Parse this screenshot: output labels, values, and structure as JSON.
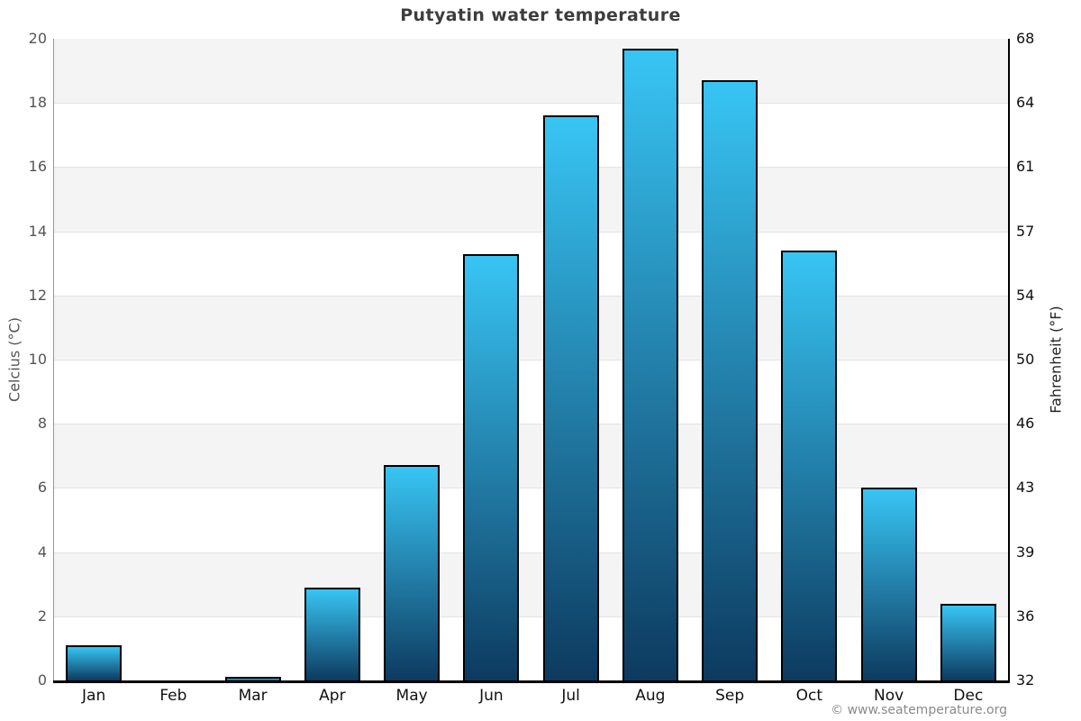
{
  "title": "Putyatin water temperature",
  "copyright": "© www.seatemperature.org",
  "chart_data": {
    "type": "bar",
    "categories": [
      "Jan",
      "Feb",
      "Mar",
      "Apr",
      "May",
      "Jun",
      "Jul",
      "Aug",
      "Sep",
      "Oct",
      "Nov",
      "Dec"
    ],
    "values": [
      1.1,
      0.0,
      0.1,
      2.9,
      6.7,
      13.3,
      17.6,
      19.7,
      18.7,
      13.4,
      6.0,
      2.4
    ],
    "title": "Putyatin water temperature",
    "ylabel_left": "Celcius (°C)",
    "ylabel_right": "Fahrenheit (°F)",
    "yticks_left": [
      0,
      2,
      4,
      6,
      8,
      10,
      12,
      14,
      16,
      18,
      20
    ],
    "yticks_right": [
      32,
      36,
      39,
      43,
      46,
      50,
      54,
      57,
      61,
      64,
      68
    ],
    "ylim": [
      0,
      20
    ],
    "grid": true,
    "legend": false,
    "band_color": "#f4f4f4",
    "bar_color_top": "#38c5f4",
    "bar_color_bottom": "#0d3a5f",
    "bar_border_color": "#000000"
  }
}
